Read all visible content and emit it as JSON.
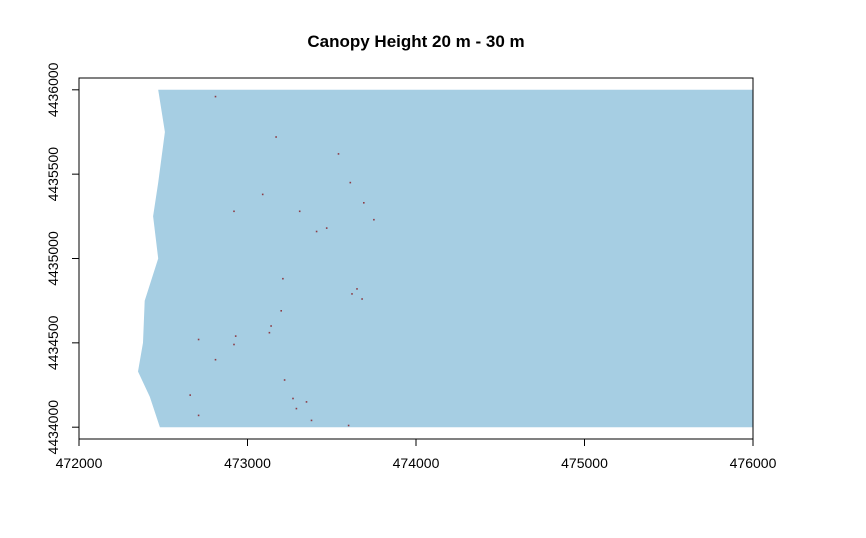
{
  "chart_data": {
    "type": "heatmap",
    "title": "Canopy Height 20 m - 30 m",
    "xlabel": "",
    "ylabel": "",
    "xlim": [
      472000,
      476000
    ],
    "ylim": [
      4433930,
      4436070
    ],
    "x_ticks": [
      472000,
      473000,
      474000,
      475000,
      476000
    ],
    "y_ticks": [
      4434000,
      4434500,
      4435000,
      4435500,
      4436000
    ],
    "x_tick_labels": [
      "472000",
      "473000",
      "474000",
      "475000",
      "476000"
    ],
    "y_tick_labels": [
      "4434000",
      "4434500",
      "4435000",
      "4435500",
      "4436000"
    ],
    "raster_fill_color": "#a6cee3",
    "pixel_color": "#8c3c46",
    "raster_extent": {
      "x_max": 476000,
      "y_min": 4434000,
      "y_max": 4436000
    },
    "raster_left_boundary": [
      [
        472470,
        4436000
      ],
      [
        472510,
        4435750
      ],
      [
        472470,
        4435450
      ],
      [
        472440,
        4435250
      ],
      [
        472470,
        4435000
      ],
      [
        472390,
        4434750
      ],
      [
        472380,
        4434500
      ],
      [
        472350,
        4434330
      ],
      [
        472420,
        4434180
      ],
      [
        472480,
        4434000
      ]
    ],
    "pixels_20_30m": [
      [
        472810,
        4435960
      ],
      [
        473170,
        4435720
      ],
      [
        473540,
        4435620
      ],
      [
        473610,
        4435450
      ],
      [
        473090,
        4435380
      ],
      [
        473690,
        4435330
      ],
      [
        473310,
        4435280
      ],
      [
        472920,
        4435280
      ],
      [
        473750,
        4435230
      ],
      [
        473470,
        4435180
      ],
      [
        473410,
        4435160
      ],
      [
        473210,
        4434880
      ],
      [
        473650,
        4434820
      ],
      [
        473620,
        4434790
      ],
      [
        473680,
        4434760
      ],
      [
        473200,
        4434690
      ],
      [
        473140,
        4434600
      ],
      [
        473130,
        4434560
      ],
      [
        472930,
        4434540
      ],
      [
        472710,
        4434520
      ],
      [
        472920,
        4434490
      ],
      [
        472810,
        4434400
      ],
      [
        473220,
        4434280
      ],
      [
        472660,
        4434190
      ],
      [
        473270,
        4434170
      ],
      [
        473350,
        4434150
      ],
      [
        473290,
        4434110
      ],
      [
        472710,
        4434070
      ],
      [
        473380,
        4434040
      ],
      [
        473600,
        4434010
      ]
    ]
  }
}
